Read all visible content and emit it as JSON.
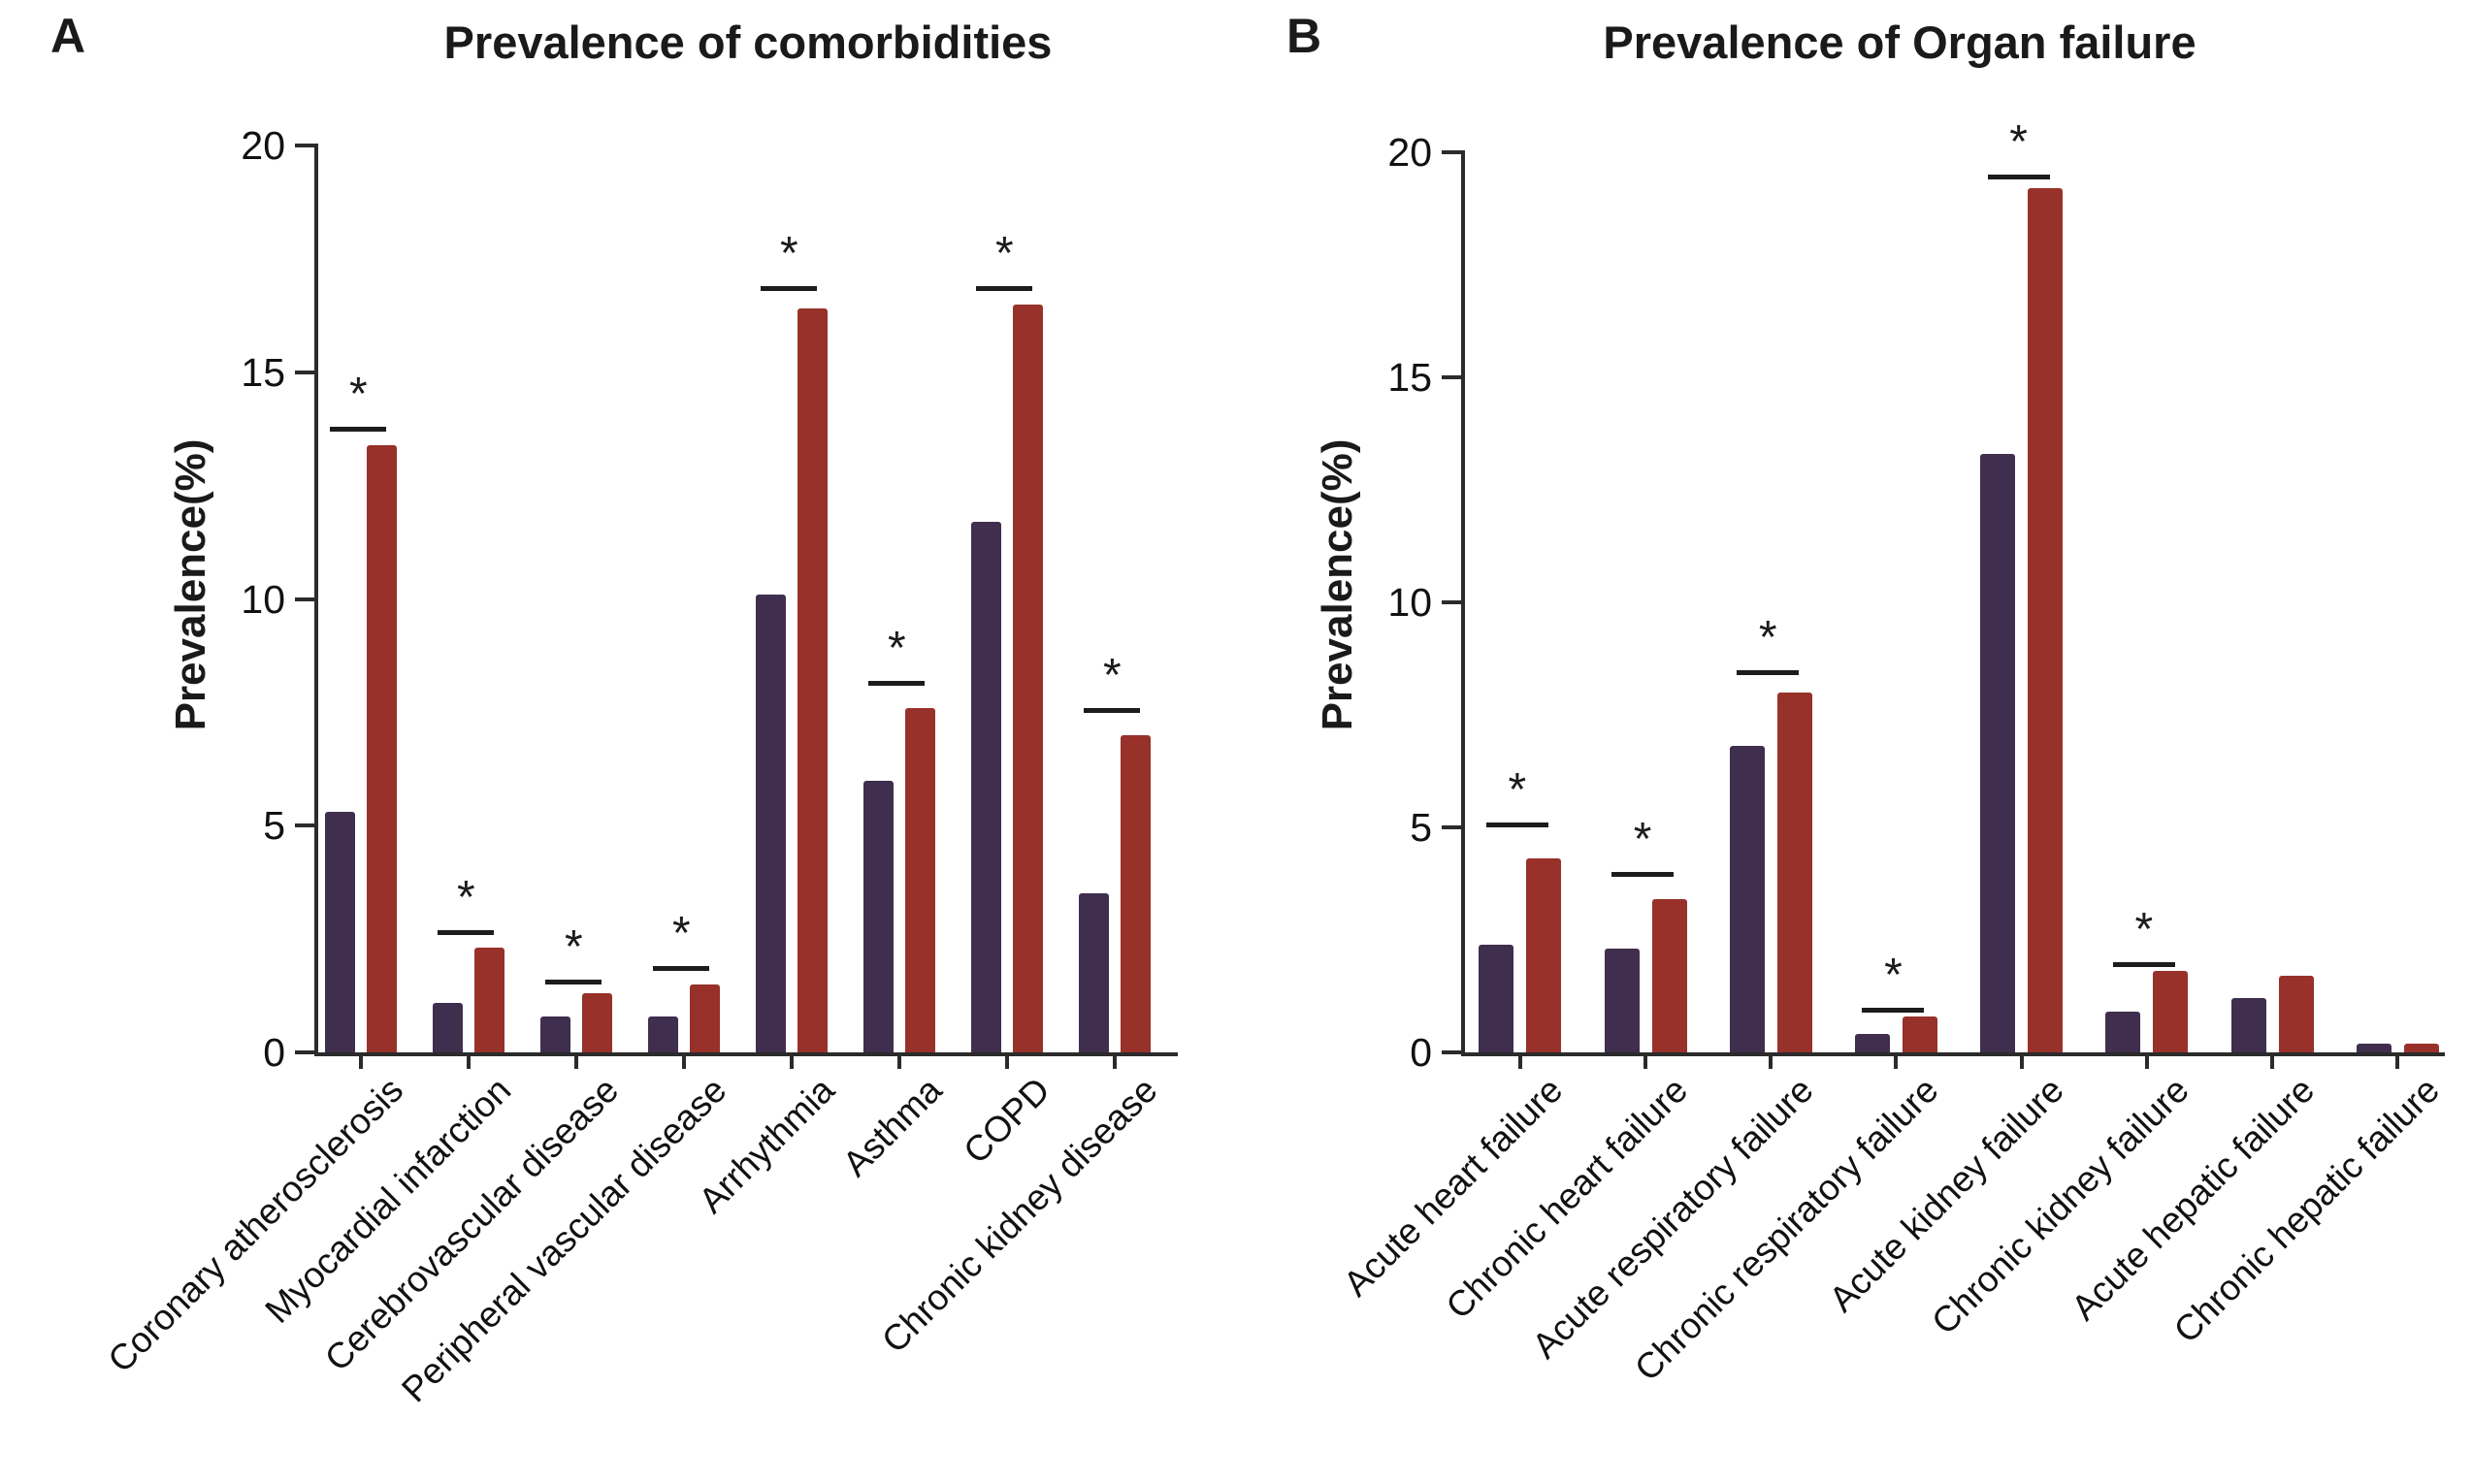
{
  "chart_data": [
    {
      "type": "bar",
      "panel_letter": "A",
      "title": "Prevalence of comorbidities",
      "ylabel": "Prevalence(%)",
      "ylim": [
        0,
        20
      ],
      "yticks": [
        0,
        5,
        10,
        15,
        20
      ],
      "grid": false,
      "legend_position": "none",
      "categories": [
        "Coronary atherosclerosis",
        "Myocardial infarction",
        "Cerebrovascular disease",
        "Peripheral vascular disease",
        "Arrhythmia",
        "Asthma",
        "COPD",
        "Chronic kidney disease"
      ],
      "series": [
        {
          "name": "series-1-dark-purple",
          "color": "#3F2E4E",
          "values": [
            5.3,
            1.1,
            0.8,
            0.8,
            10.1,
            6.0,
            11.7,
            3.5
          ]
        },
        {
          "name": "series-2-dark-red",
          "color": "#97312A",
          "values": [
            13.4,
            2.3,
            1.3,
            1.5,
            16.4,
            7.6,
            16.5,
            7.0
          ]
        }
      ],
      "significance_markers": [
        {
          "category_index": 0,
          "symbol": "*",
          "line_value": 13.8
        },
        {
          "category_index": 1,
          "symbol": "*",
          "line_value": 2.7
        },
        {
          "category_index": 2,
          "symbol": "*",
          "line_value": 1.6
        },
        {
          "category_index": 3,
          "symbol": "*",
          "line_value": 1.9
        },
        {
          "category_index": 4,
          "symbol": "*",
          "line_value": 16.9
        },
        {
          "category_index": 5,
          "symbol": "*",
          "line_value": 8.2
        },
        {
          "category_index": 6,
          "symbol": "*",
          "line_value": 16.9
        },
        {
          "category_index": 7,
          "symbol": "*",
          "line_value": 7.6
        }
      ]
    },
    {
      "type": "bar",
      "panel_letter": "B",
      "title": "Prevalence of Organ failure",
      "ylabel": "Prevalence(%)",
      "ylim": [
        0,
        20
      ],
      "yticks": [
        0,
        5,
        10,
        15,
        20
      ],
      "grid": false,
      "legend_position": "none",
      "categories": [
        "Acute heart failure",
        "Chronic heart failure",
        "Acute respiratory failure",
        "Chronic respiratory failure",
        "Acute kidney failure",
        "Chronic kidney failure",
        "Acute hepatic failure",
        "Chronic hepatic failure"
      ],
      "series": [
        {
          "name": "series-1-dark-purple",
          "color": "#3F2E4E",
          "values": [
            2.4,
            2.3,
            6.8,
            0.4,
            13.3,
            0.9,
            1.2,
            0.2
          ]
        },
        {
          "name": "series-2-dark-red",
          "color": "#97312A",
          "values": [
            4.3,
            3.4,
            8.0,
            0.8,
            19.2,
            1.8,
            1.7,
            0.2
          ]
        }
      ],
      "significance_markers": [
        {
          "category_index": 0,
          "symbol": "*",
          "line_value": 5.1
        },
        {
          "category_index": 1,
          "symbol": "*",
          "line_value": 4.0
        },
        {
          "category_index": 2,
          "symbol": "*",
          "line_value": 8.5
        },
        {
          "category_index": 3,
          "symbol": "*",
          "line_value": 1.0
        },
        {
          "category_index": 4,
          "symbol": "*",
          "line_value": 19.5
        },
        {
          "category_index": 5,
          "symbol": "*",
          "line_value": 2.0
        }
      ]
    }
  ]
}
